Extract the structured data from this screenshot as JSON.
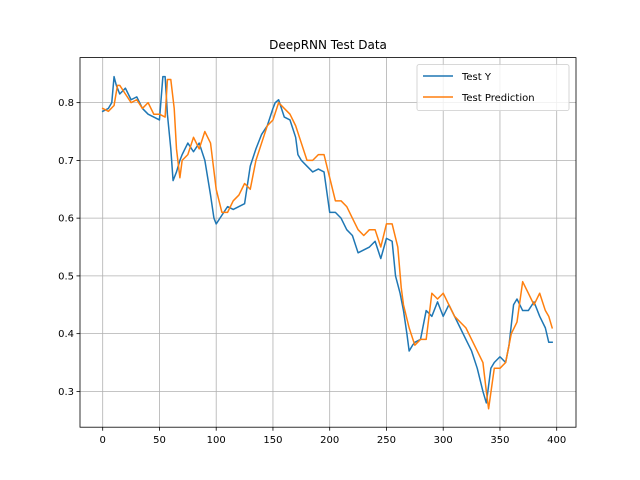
{
  "chart_data": {
    "type": "line",
    "title": "DeepRNN Test Data",
    "xlabel": "",
    "ylabel": "",
    "xlim": [
      -20,
      417
    ],
    "ylim": [
      0.238,
      0.878
    ],
    "xticks": [
      0,
      50,
      100,
      150,
      200,
      250,
      300,
      350,
      400
    ],
    "yticks": [
      0.3,
      0.4,
      0.5,
      0.6,
      0.7,
      0.8
    ],
    "xtick_labels": [
      "0",
      "50",
      "100",
      "150",
      "200",
      "250",
      "300",
      "350",
      "400"
    ],
    "ytick_labels": [
      "0.3",
      "0.4",
      "0.5",
      "0.6",
      "0.7",
      "0.8"
    ],
    "grid": true,
    "legend_position": "top-right",
    "series": [
      {
        "name": "Test Y",
        "color": "#1f77b4",
        "x": [
          0,
          5,
          8,
          10,
          12,
          15,
          20,
          25,
          30,
          35,
          40,
          45,
          50,
          53,
          55,
          57,
          60,
          62,
          65,
          68,
          70,
          75,
          80,
          85,
          90,
          95,
          98,
          100,
          105,
          110,
          115,
          120,
          125,
          130,
          135,
          140,
          145,
          150,
          152,
          155,
          160,
          165,
          170,
          172,
          175,
          180,
          185,
          190,
          195,
          200,
          205,
          210,
          215,
          220,
          225,
          230,
          235,
          240,
          245,
          250,
          255,
          258,
          262,
          265,
          268,
          270,
          273,
          275,
          280,
          285,
          290,
          295,
          300,
          305,
          310,
          315,
          320,
          325,
          330,
          335,
          338,
          342,
          345,
          350,
          355,
          358,
          362,
          365,
          370,
          375,
          380,
          385,
          390,
          393,
          396
        ],
        "values": [
          0.785,
          0.79,
          0.8,
          0.845,
          0.83,
          0.815,
          0.825,
          0.805,
          0.81,
          0.79,
          0.78,
          0.775,
          0.77,
          0.845,
          0.845,
          0.78,
          0.72,
          0.665,
          0.68,
          0.7,
          0.71,
          0.73,
          0.715,
          0.73,
          0.7,
          0.64,
          0.6,
          0.59,
          0.605,
          0.62,
          0.615,
          0.62,
          0.625,
          0.69,
          0.72,
          0.745,
          0.76,
          0.79,
          0.8,
          0.805,
          0.775,
          0.77,
          0.74,
          0.71,
          0.7,
          0.69,
          0.68,
          0.685,
          0.68,
          0.61,
          0.61,
          0.6,
          0.58,
          0.57,
          0.54,
          0.545,
          0.55,
          0.56,
          0.53,
          0.565,
          0.56,
          0.5,
          0.47,
          0.44,
          0.4,
          0.37,
          0.38,
          0.385,
          0.39,
          0.44,
          0.43,
          0.455,
          0.43,
          0.45,
          0.43,
          0.41,
          0.39,
          0.37,
          0.34,
          0.3,
          0.28,
          0.34,
          0.35,
          0.36,
          0.35,
          0.38,
          0.45,
          0.46,
          0.44,
          0.44,
          0.455,
          0.43,
          0.41,
          0.385,
          0.385
        ]
      },
      {
        "name": "Test Prediction",
        "color": "#ff7f0e",
        "x": [
          0,
          5,
          10,
          13,
          15,
          20,
          25,
          30,
          35,
          40,
          45,
          50,
          55,
          57,
          60,
          63,
          65,
          68,
          70,
          75,
          80,
          85,
          90,
          95,
          100,
          105,
          110,
          115,
          120,
          125,
          130,
          135,
          140,
          145,
          150,
          155,
          160,
          165,
          170,
          175,
          180,
          185,
          190,
          195,
          200,
          205,
          210,
          215,
          220,
          225,
          230,
          235,
          240,
          245,
          250,
          255,
          260,
          263,
          265,
          270,
          275,
          280,
          285,
          290,
          295,
          300,
          305,
          310,
          315,
          320,
          325,
          330,
          335,
          338,
          340,
          345,
          350,
          355,
          360,
          365,
          370,
          375,
          380,
          385,
          390,
          393,
          396
        ],
        "values": [
          0.79,
          0.785,
          0.795,
          0.83,
          0.83,
          0.815,
          0.8,
          0.805,
          0.79,
          0.8,
          0.78,
          0.78,
          0.775,
          0.84,
          0.84,
          0.79,
          0.72,
          0.67,
          0.7,
          0.71,
          0.74,
          0.72,
          0.75,
          0.73,
          0.65,
          0.61,
          0.61,
          0.63,
          0.64,
          0.66,
          0.65,
          0.7,
          0.73,
          0.76,
          0.77,
          0.8,
          0.79,
          0.78,
          0.76,
          0.73,
          0.7,
          0.7,
          0.71,
          0.71,
          0.67,
          0.63,
          0.63,
          0.62,
          0.6,
          0.58,
          0.57,
          0.58,
          0.58,
          0.55,
          0.59,
          0.59,
          0.55,
          0.48,
          0.45,
          0.41,
          0.38,
          0.39,
          0.39,
          0.47,
          0.46,
          0.47,
          0.45,
          0.43,
          0.42,
          0.41,
          0.39,
          0.37,
          0.35,
          0.3,
          0.27,
          0.34,
          0.34,
          0.35,
          0.4,
          0.42,
          0.49,
          0.47,
          0.45,
          0.47,
          0.44,
          0.43,
          0.41
        ]
      }
    ]
  }
}
